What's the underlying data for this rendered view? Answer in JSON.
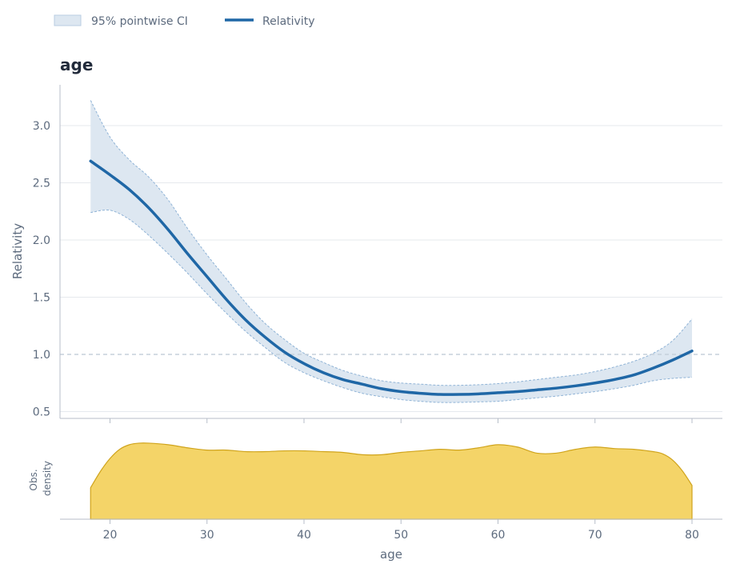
{
  "legend": {
    "ci_label": "95% pointwise CI",
    "line_label": "Relativity"
  },
  "colors": {
    "line": "#1f67a6",
    "ci_fill": "#dde7f1",
    "ci_edge": "#8fb3d6",
    "density_fill": "#f4d468",
    "density_edge": "#d0a41c",
    "reference_line": "#c5d0dc",
    "grid": "#e6e9ee",
    "axis": "#b7bec8"
  },
  "chart_data": [
    {
      "type": "line",
      "title": "age",
      "ylabel": "Relativity",
      "xlim": [
        15,
        83
      ],
      "ylim": [
        0.45,
        3.35
      ],
      "yticks": [
        0.5,
        1.0,
        1.5,
        2.0,
        2.5,
        3.0
      ],
      "ytick_labels": [
        "0.5",
        "1.0",
        "1.5",
        "2.0",
        "2.5",
        "3.0"
      ],
      "xticks": [
        20,
        30,
        40,
        50,
        60,
        70,
        80
      ],
      "reference_line": 1.0,
      "grid": "horizontal",
      "legend_position": "top-left",
      "x": [
        18,
        20,
        22,
        24,
        26,
        28,
        30,
        32,
        34,
        36,
        38,
        40,
        42,
        44,
        46,
        48,
        50,
        52,
        54,
        56,
        58,
        60,
        62,
        64,
        66,
        68,
        70,
        72,
        74,
        76,
        78,
        80
      ],
      "series": [
        {
          "name": "Relativity",
          "values": [
            2.69,
            2.57,
            2.44,
            2.28,
            2.09,
            1.88,
            1.68,
            1.48,
            1.3,
            1.15,
            1.02,
            0.92,
            0.84,
            0.78,
            0.74,
            0.7,
            0.675,
            0.66,
            0.65,
            0.65,
            0.655,
            0.665,
            0.675,
            0.69,
            0.705,
            0.725,
            0.75,
            0.78,
            0.82,
            0.88,
            0.95,
            1.03
          ]
        },
        {
          "name": "95% pointwise CI (lower)",
          "values": [
            2.24,
            2.26,
            2.18,
            2.04,
            1.88,
            1.71,
            1.53,
            1.36,
            1.2,
            1.06,
            0.93,
            0.84,
            0.77,
            0.71,
            0.66,
            0.63,
            0.605,
            0.59,
            0.58,
            0.58,
            0.585,
            0.59,
            0.605,
            0.62,
            0.635,
            0.655,
            0.675,
            0.7,
            0.73,
            0.77,
            0.79,
            0.8
          ]
        },
        {
          "name": "95% pointwise CI (upper)",
          "values": [
            3.22,
            2.9,
            2.7,
            2.55,
            2.35,
            2.1,
            1.87,
            1.66,
            1.45,
            1.27,
            1.13,
            1.01,
            0.93,
            0.86,
            0.81,
            0.77,
            0.75,
            0.74,
            0.73,
            0.73,
            0.735,
            0.745,
            0.76,
            0.78,
            0.8,
            0.82,
            0.85,
            0.89,
            0.94,
            1.01,
            1.12,
            1.31
          ]
        }
      ]
    },
    {
      "type": "area",
      "ylabel": "Obs. density",
      "xlabel": "age",
      "xlim": [
        15,
        83
      ],
      "xticks": [
        20,
        30,
        40,
        50,
        60,
        70,
        80
      ],
      "xtick_labels": [
        "20",
        "30",
        "40",
        "50",
        "60",
        "70",
        "80"
      ],
      "ylim": [
        0,
        1
      ],
      "x": [
        18,
        19,
        20,
        21,
        22,
        23,
        24,
        26,
        28,
        30,
        32,
        34,
        36,
        38,
        40,
        42,
        44,
        46,
        48,
        50,
        52,
        54,
        56,
        58,
        60,
        62,
        64,
        66,
        68,
        70,
        72,
        74,
        76,
        77,
        78,
        79,
        80
      ],
      "values": [
        0.41,
        0.62,
        0.79,
        0.91,
        0.97,
        0.99,
        0.99,
        0.97,
        0.93,
        0.9,
        0.9,
        0.88,
        0.88,
        0.89,
        0.89,
        0.88,
        0.87,
        0.84,
        0.84,
        0.87,
        0.89,
        0.91,
        0.9,
        0.93,
        0.97,
        0.94,
        0.86,
        0.86,
        0.91,
        0.94,
        0.92,
        0.91,
        0.88,
        0.85,
        0.77,
        0.63,
        0.44
      ]
    }
  ]
}
